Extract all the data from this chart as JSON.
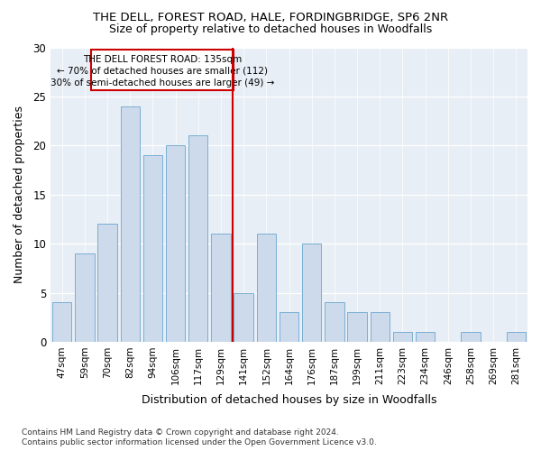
{
  "title1": "THE DELL, FOREST ROAD, HALE, FORDINGBRIDGE, SP6 2NR",
  "title2": "Size of property relative to detached houses in Woodfalls",
  "xlabel": "Distribution of detached houses by size in Woodfalls",
  "ylabel": "Number of detached properties",
  "categories": [
    "47sqm",
    "59sqm",
    "70sqm",
    "82sqm",
    "94sqm",
    "106sqm",
    "117sqm",
    "129sqm",
    "141sqm",
    "152sqm",
    "164sqm",
    "176sqm",
    "187sqm",
    "199sqm",
    "211sqm",
    "223sqm",
    "234sqm",
    "246sqm",
    "258sqm",
    "269sqm",
    "281sqm"
  ],
  "values": [
    4,
    9,
    12,
    24,
    19,
    20,
    21,
    11,
    5,
    11,
    3,
    10,
    4,
    3,
    3,
    1,
    1,
    0,
    1,
    0,
    1
  ],
  "bar_color": "#ccdaeb",
  "bar_edge_color": "#7aafd4",
  "vline_index": 8,
  "vline_color": "#cc0000",
  "annotation_title": "THE DELL FOREST ROAD: 135sqm",
  "annotation_line1": "← 70% of detached houses are smaller (112)",
  "annotation_line2": "30% of semi-detached houses are larger (49) →",
  "annotation_box_edge": "#cc0000",
  "ylim": [
    0,
    30
  ],
  "yticks": [
    0,
    5,
    10,
    15,
    20,
    25,
    30
  ],
  "footer1": "Contains HM Land Registry data © Crown copyright and database right 2024.",
  "footer2": "Contains public sector information licensed under the Open Government Licence v3.0.",
  "fig_bg_color": "#ffffff",
  "plot_bg_color": "#e8eef5"
}
